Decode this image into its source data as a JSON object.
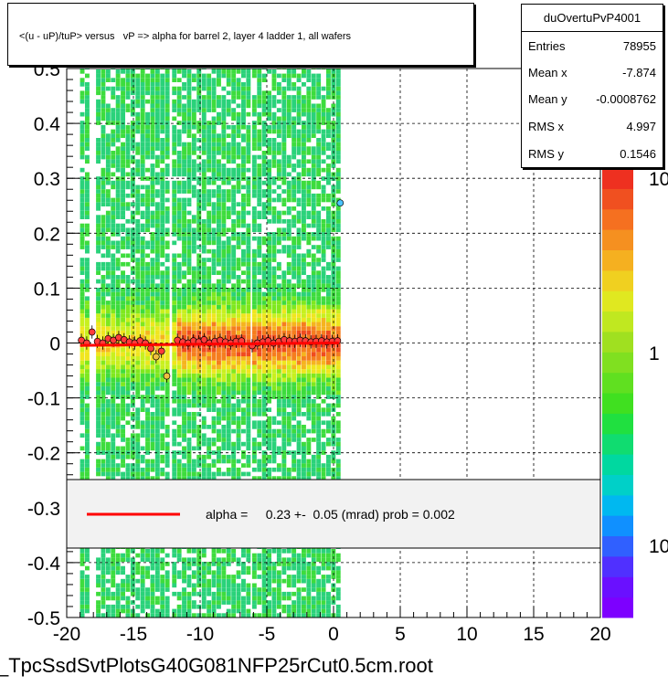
{
  "title": "<(u - uP)/tuP> versus   vP => alpha for barrel 2, layer 4 ladder 1, all wafers",
  "stats": {
    "name": "duOvertuPvP4001",
    "rows": [
      {
        "label": "Entries",
        "value": "78955"
      },
      {
        "label": "Mean x",
        "value": "-7.874"
      },
      {
        "label": "Mean y",
        "value": "-0.0008762"
      },
      {
        "label": "RMS x",
        "value": "4.997"
      },
      {
        "label": "RMS y",
        "value": "0.1546"
      }
    ]
  },
  "fit_legend": "alpha =     0.23 +-  0.05 (mrad) prob = 0.002",
  "footer": "_TpcSsdSvtPlotsG40G081NFP25rCut0.5cm.root",
  "colors": {
    "fit_line": "#ff0000",
    "profile_marker": "#ff3b3b"
  },
  "chart_data": {
    "type": "heatmap",
    "title": "<(u - uP)/tuP> versus   vP => alpha for barrel 2, layer 4 ladder 1, all wafers",
    "xlim": [
      -20,
      20
    ],
    "ylim": [
      -0.5,
      0.5
    ],
    "x_ticks": [
      "-20",
      "-15",
      "-10",
      "-5",
      "0",
      "5",
      "10",
      "15",
      "20"
    ],
    "y_ticks": [
      "0.5",
      "0.4",
      "0.3",
      "0.2",
      "0.1",
      "0",
      "-0.1",
      "-0.2",
      "-0.3",
      "-0.4",
      "-0.5"
    ],
    "z_scale": "log",
    "z_ticks": [
      "10",
      "1",
      "10"
    ],
    "grid": true,
    "filled_x_ranges": [
      [
        -19,
        -18.3
      ],
      [
        -17.8,
        -12.6
      ],
      [
        -12.1,
        -6.5
      ],
      [
        -6.1,
        0.3
      ]
    ],
    "profile": {
      "x": [
        -18.9,
        -18.5,
        -18.1,
        -17.7,
        -17.3,
        -16.9,
        -16.5,
        -16.1,
        -15.7,
        -15.3,
        -14.9,
        -14.5,
        -14.1,
        -13.7,
        -13.3,
        -12.9,
        -12.5,
        -11.7,
        -11.3,
        -10.9,
        -10.5,
        -10.1,
        -9.7,
        -9.3,
        -8.9,
        -8.5,
        -8.1,
        -7.7,
        -7.3,
        -6.9,
        -6.1,
        -5.7,
        -5.3,
        -4.9,
        -4.5,
        -4.1,
        -3.7,
        -3.3,
        -2.9,
        -2.5,
        -2.1,
        -1.7,
        -1.3,
        -0.9,
        -0.5,
        -0.1,
        0.3
      ],
      "y": [
        0.005,
        0.0,
        0.02,
        0.003,
        0.0,
        0.008,
        0.005,
        0.01,
        0.006,
        0.002,
        0.0,
        0.004,
        0.0,
        -0.01,
        -0.025,
        -0.015,
        -0.06,
        0.005,
        0.002,
        0.0,
        0.004,
        0.002,
        0.006,
        0.0,
        0.003,
        0.005,
        0.002,
        0.0,
        0.003,
        0.004,
        -0.005,
        0.0,
        0.002,
        0.004,
        0.0,
        0.003,
        0.006,
        0.004,
        0.003,
        0.005,
        0.004,
        0.002,
        0.003,
        0.004,
        0.002,
        0.003,
        0.004
      ]
    },
    "outlier_points": [
      {
        "x": 0.5,
        "y": 0.255
      }
    ],
    "fit": {
      "slope_mrad": 0.23,
      "error_mrad": 0.05,
      "prob": 0.002,
      "x_range": [
        -19,
        0.4
      ],
      "intercept": 0.0
    }
  }
}
